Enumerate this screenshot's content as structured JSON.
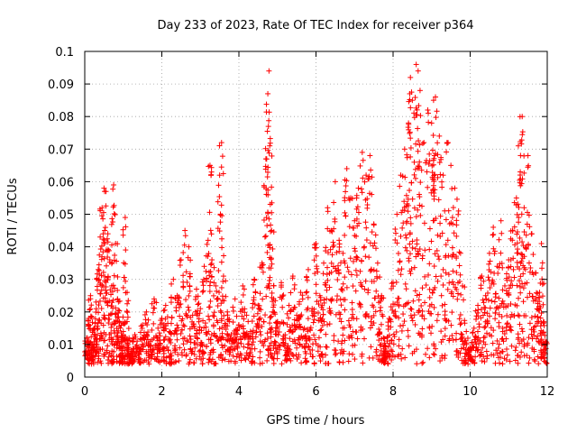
{
  "chart_data": {
    "type": "scatter",
    "title": "Day 233 of 2023, Rate Of TEC Index for receiver p364",
    "xlabel": "GPS time / hours",
    "ylabel": "ROTI / TECUs",
    "xlim": [
      0,
      12
    ],
    "ylim": [
      0,
      0.1
    ],
    "x_ticks": [
      0,
      2,
      4,
      6,
      8,
      10,
      12
    ],
    "x_tick_labels": [
      "0",
      "2",
      "4",
      "6",
      "8",
      "10",
      "12"
    ],
    "y_ticks": [
      0,
      0.01,
      0.02,
      0.03,
      0.04,
      0.05,
      0.06,
      0.07,
      0.08,
      0.09,
      0.1
    ],
    "y_tick_labels": [
      "0",
      "0.01",
      "0.02",
      "0.03",
      "0.04",
      "0.05",
      "0.06",
      "0.07",
      "0.08",
      "0.09",
      "0.1"
    ],
    "grid": true,
    "marker": "+",
    "color": "#ff0000",
    "series": [
      {
        "name": "ROTI",
        "points": [
          [
            0.05,
            0.012
          ],
          [
            0.1,
            0.018
          ],
          [
            0.15,
            0.025
          ],
          [
            0.2,
            0.009
          ],
          [
            0.25,
            0.015
          ],
          [
            0.3,
            0.021
          ],
          [
            0.35,
            0.033
          ],
          [
            0.4,
            0.043
          ],
          [
            0.45,
            0.052
          ],
          [
            0.5,
            0.058
          ],
          [
            0.55,
            0.057
          ],
          [
            0.6,
            0.044
          ],
          [
            0.65,
            0.036
          ],
          [
            0.7,
            0.028
          ],
          [
            0.75,
            0.059
          ],
          [
            0.8,
            0.041
          ],
          [
            0.85,
            0.024
          ],
          [
            0.9,
            0.017
          ],
          [
            0.95,
            0.011
          ],
          [
            1.0,
            0.014
          ],
          [
            1.05,
            0.049
          ],
          [
            1.1,
            0.026
          ],
          [
            1.15,
            0.012
          ],
          [
            1.2,
            0.008
          ],
          [
            1.3,
            0.013
          ],
          [
            1.4,
            0.009
          ],
          [
            1.5,
            0.016
          ],
          [
            1.6,
            0.02
          ],
          [
            1.7,
            0.011
          ],
          [
            1.8,
            0.024
          ],
          [
            1.9,
            0.015
          ],
          [
            2.0,
            0.018
          ],
          [
            2.1,
            0.022
          ],
          [
            2.2,
            0.014
          ],
          [
            2.3,
            0.03
          ],
          [
            2.4,
            0.025
          ],
          [
            2.5,
            0.036
          ],
          [
            2.6,
            0.045
          ],
          [
            2.7,
            0.04
          ],
          [
            2.8,
            0.019
          ],
          [
            2.9,
            0.027
          ],
          [
            3.0,
            0.021
          ],
          [
            3.1,
            0.034
          ],
          [
            3.2,
            0.042
          ],
          [
            3.25,
            0.065
          ],
          [
            3.3,
            0.036
          ],
          [
            3.4,
            0.028
          ],
          [
            3.5,
            0.062
          ],
          [
            3.55,
            0.072
          ],
          [
            3.6,
            0.031
          ],
          [
            3.7,
            0.02
          ],
          [
            3.8,
            0.013
          ],
          [
            3.9,
            0.024
          ],
          [
            4.0,
            0.016
          ],
          [
            4.1,
            0.028
          ],
          [
            4.2,
            0.019
          ],
          [
            4.3,
            0.014
          ],
          [
            4.4,
            0.03
          ],
          [
            4.5,
            0.022
          ],
          [
            4.6,
            0.035
          ],
          [
            4.7,
            0.067
          ],
          [
            4.75,
            0.087
          ],
          [
            4.78,
            0.094
          ],
          [
            4.8,
            0.071
          ],
          [
            4.85,
            0.045
          ],
          [
            4.9,
            0.024
          ],
          [
            5.0,
            0.017
          ],
          [
            5.1,
            0.029
          ],
          [
            5.2,
            0.013
          ],
          [
            5.3,
            0.022
          ],
          [
            5.4,
            0.031
          ],
          [
            5.5,
            0.019
          ],
          [
            5.6,
            0.026
          ],
          [
            5.7,
            0.015
          ],
          [
            5.8,
            0.033
          ],
          [
            5.9,
            0.021
          ],
          [
            6.0,
            0.041
          ],
          [
            6.1,
            0.025
          ],
          [
            6.2,
            0.035
          ],
          [
            6.3,
            0.052
          ],
          [
            6.4,
            0.045
          ],
          [
            6.5,
            0.06
          ],
          [
            6.6,
            0.042
          ],
          [
            6.7,
            0.038
          ],
          [
            6.8,
            0.064
          ],
          [
            6.9,
            0.055
          ],
          [
            7.0,
            0.048
          ],
          [
            7.1,
            0.058
          ],
          [
            7.2,
            0.069
          ],
          [
            7.3,
            0.062
          ],
          [
            7.4,
            0.068
          ],
          [
            7.5,
            0.047
          ],
          [
            7.6,
            0.035
          ],
          [
            7.7,
            0.025
          ],
          [
            7.75,
            0.012
          ],
          [
            7.8,
            0.008
          ],
          [
            7.9,
            0.018
          ],
          [
            8.0,
            0.029
          ],
          [
            8.1,
            0.05
          ],
          [
            8.2,
            0.062
          ],
          [
            8.3,
            0.07
          ],
          [
            8.4,
            0.078
          ],
          [
            8.45,
            0.092
          ],
          [
            8.5,
            0.085
          ],
          [
            8.6,
            0.096
          ],
          [
            8.65,
            0.094
          ],
          [
            8.7,
            0.088
          ],
          [
            8.8,
            0.072
          ],
          [
            8.9,
            0.082
          ],
          [
            9.0,
            0.078
          ],
          [
            9.05,
            0.085
          ],
          [
            9.1,
            0.086
          ],
          [
            9.2,
            0.074
          ],
          [
            9.3,
            0.062
          ],
          [
            9.4,
            0.072
          ],
          [
            9.5,
            0.065
          ],
          [
            9.6,
            0.058
          ],
          [
            9.7,
            0.051
          ],
          [
            9.8,
            0.028
          ],
          [
            9.9,
            0.014
          ],
          [
            10.0,
            0.009
          ],
          [
            10.1,
            0.015
          ],
          [
            10.2,
            0.022
          ],
          [
            10.3,
            0.031
          ],
          [
            10.4,
            0.025
          ],
          [
            10.5,
            0.038
          ],
          [
            10.6,
            0.046
          ],
          [
            10.7,
            0.034
          ],
          [
            10.8,
            0.048
          ],
          [
            10.9,
            0.028
          ],
          [
            11.0,
            0.036
          ],
          [
            11.1,
            0.045
          ],
          [
            11.2,
            0.055
          ],
          [
            11.25,
            0.071
          ],
          [
            11.3,
            0.063
          ],
          [
            11.35,
            0.08
          ],
          [
            11.4,
            0.052
          ],
          [
            11.5,
            0.068
          ],
          [
            11.6,
            0.044
          ],
          [
            11.7,
            0.032
          ],
          [
            11.8,
            0.026
          ],
          [
            11.85,
            0.041
          ],
          [
            11.9,
            0.017
          ],
          [
            11.95,
            0.011
          ]
        ]
      }
    ]
  }
}
